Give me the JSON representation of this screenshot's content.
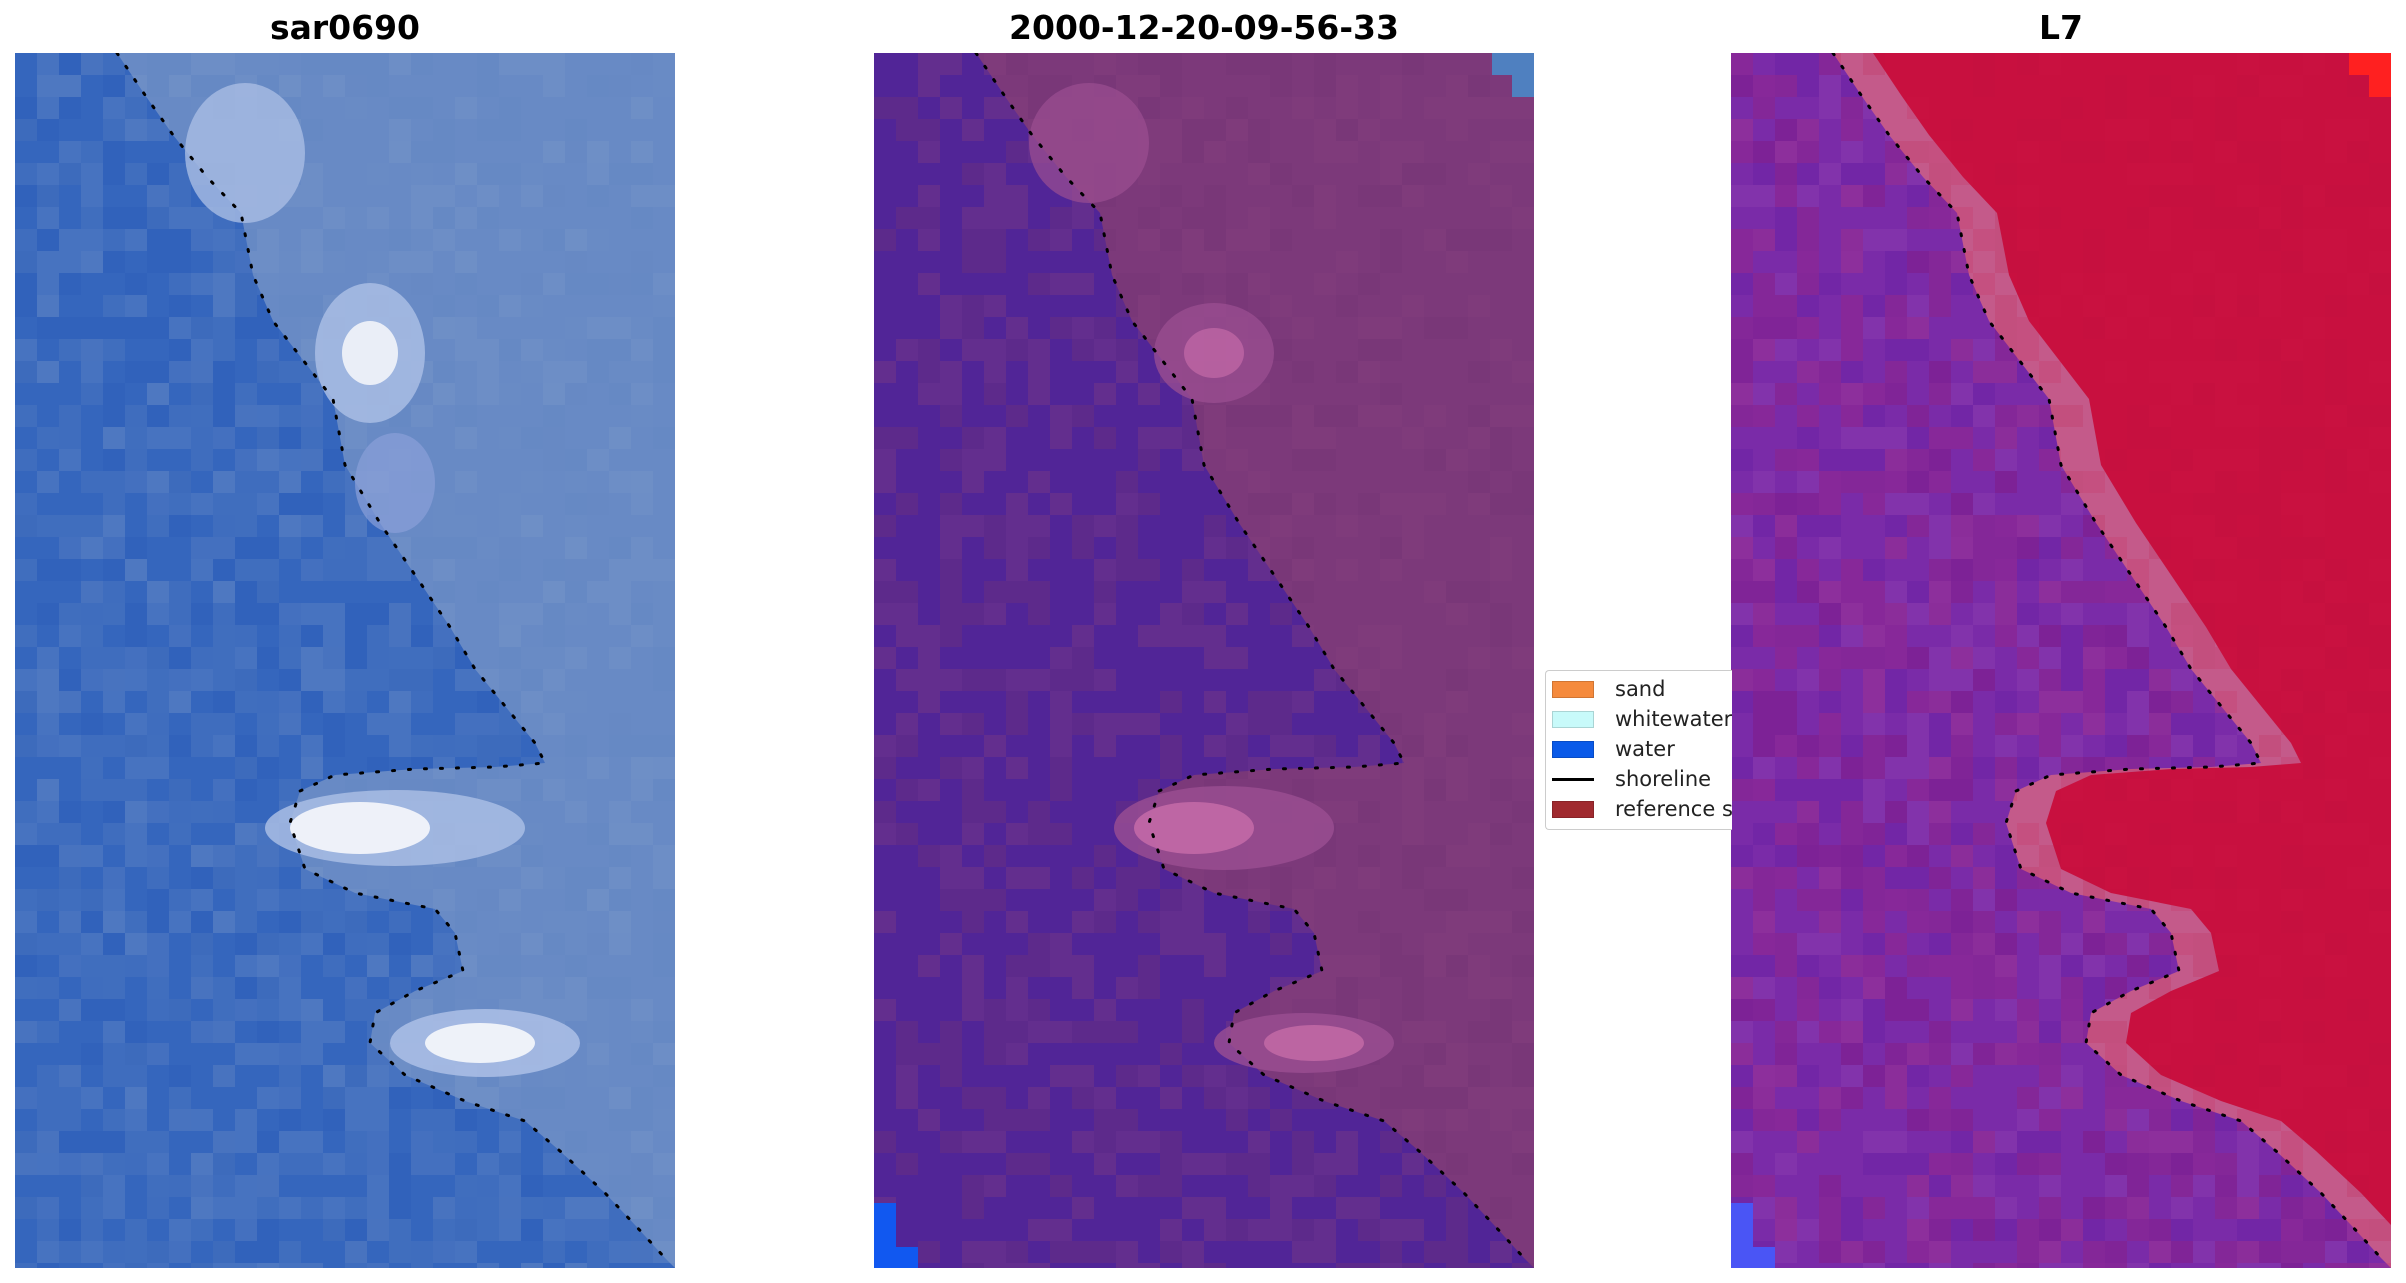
{
  "panels": [
    {
      "title": "sar0690",
      "palette": {
        "water": "#3566bd",
        "water_alt": "#2e60bb",
        "land": "#6f90c6",
        "patch": "#f2f4fa",
        "patch_edge": "#a9bde4"
      }
    },
    {
      "title": "2000-12-20-09-56-33",
      "palette": {
        "water": "#512597",
        "land": "#7c397a",
        "patch": "#c56ba8",
        "patch_edge": "#9b4f92",
        "corner_blue": "#1158f0",
        "corner_blue_tr": "#4f80c0"
      }
    },
    {
      "title": "L7",
      "palette": {
        "water": "#7a2ba8",
        "water_alt": "#6c22a6",
        "land": "#c8103f",
        "transition": "#c45a8a",
        "corner_red": "#ff2020",
        "corner_blue": "#4a55f5"
      }
    }
  ],
  "legend": {
    "items": [
      {
        "label": "sand",
        "type": "patch",
        "color": "#f58a3c"
      },
      {
        "label": "whitewater",
        "type": "patch",
        "color": "#c8fafa"
      },
      {
        "label": "water",
        "type": "patch",
        "color": "#0a5ae8"
      },
      {
        "label": "shoreline",
        "type": "line",
        "color": "#000000"
      },
      {
        "label": "reference shoreline",
        "type": "patch",
        "color": "#a02a2f"
      }
    ]
  },
  "shoreline_color": "#000000"
}
